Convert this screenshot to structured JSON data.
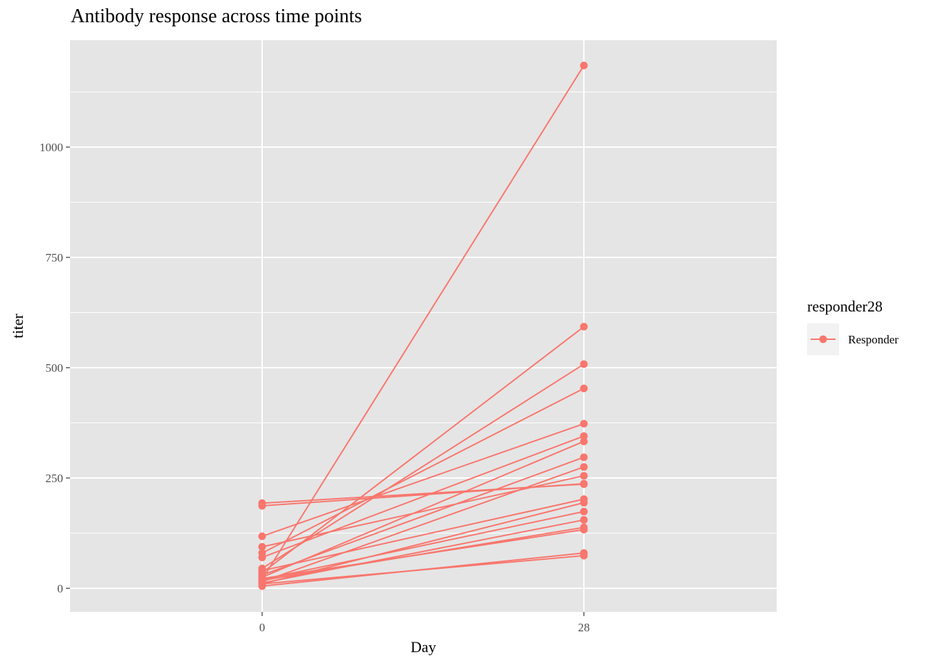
{
  "chart_data": {
    "type": "line",
    "title": "Antibody response across time points",
    "xlabel": "Day",
    "ylabel": "titer",
    "x": [
      0,
      28
    ],
    "x_tick_labels": [
      "0",
      "28"
    ],
    "y_ticks": [
      0,
      250,
      500,
      750,
      1000
    ],
    "y_tick_labels": [
      "0",
      "250",
      "500",
      "750",
      "1000"
    ],
    "ylim": [
      -55,
      1240
    ],
    "grid": true,
    "legend": {
      "title": "responder28",
      "position": "right",
      "entries": [
        {
          "label": "Responder",
          "color": "#F8766D"
        }
      ]
    },
    "series_color": "#F8766D",
    "series": [
      {
        "values": [
          20,
          1185
        ]
      },
      {
        "values": [
          35,
          593
        ]
      },
      {
        "values": [
          45,
          508
        ]
      },
      {
        "values": [
          80,
          453
        ]
      },
      {
        "values": [
          118,
          373
        ]
      },
      {
        "values": [
          70,
          345
        ]
      },
      {
        "values": [
          25,
          333
        ]
      },
      {
        "values": [
          30,
          297
        ]
      },
      {
        "values": [
          15,
          275
        ]
      },
      {
        "values": [
          94,
          255
        ]
      },
      {
        "values": [
          187,
          237
        ]
      },
      {
        "values": [
          193,
          236
        ]
      },
      {
        "values": [
          40,
          202
        ]
      },
      {
        "values": [
          10,
          194
        ]
      },
      {
        "values": [
          20,
          174
        ]
      },
      {
        "values": [
          12,
          155
        ]
      },
      {
        "values": [
          18,
          138
        ]
      },
      {
        "values": [
          22,
          133
        ]
      },
      {
        "values": [
          5,
          80
        ]
      },
      {
        "values": [
          10,
          74
        ]
      }
    ]
  }
}
